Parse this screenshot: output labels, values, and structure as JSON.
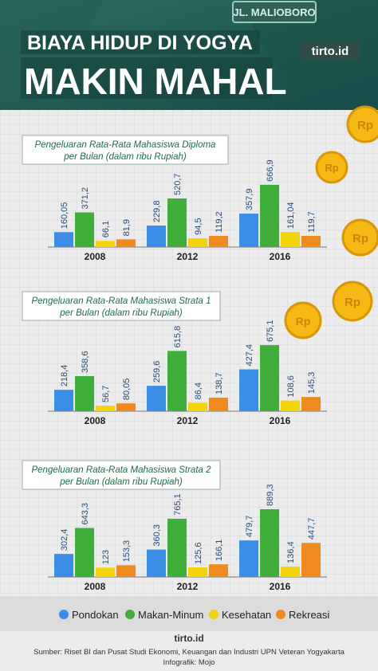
{
  "header": {
    "title_line1": "BIAYA HIDUP DI YOGYA",
    "title_line2": "MAKIN MAHAL",
    "sign_text": "JL. MALIOBORO",
    "brand_badge": "tirto.id"
  },
  "legend": {
    "items": [
      {
        "label": "Pondokan",
        "color": "#3a8ee6"
      },
      {
        "label": "Makan-Minum",
        "color": "#3fae3a"
      },
      {
        "label": "Kesehatan",
        "color": "#f2d40c"
      },
      {
        "label": "Rekreasi",
        "color": "#ef8a1e"
      }
    ]
  },
  "footer": {
    "brand": "tirto.id",
    "source_line1": "Sumber: Riset BI dan Pusat Studi Ekonomi, Keuangan dan Industri UPN Veteran Yogyakarta",
    "source_line2": "Infografik: Mojo"
  },
  "decor": {
    "coin_label": "Rp"
  },
  "colors": {
    "bg": "#ececec",
    "header_teal": "#1f5d57",
    "series": [
      "#3a8ee6",
      "#3fae3a",
      "#f2d40c",
      "#ef8a1e"
    ],
    "title_text": "#1e6d47",
    "coin": "#f5b814"
  },
  "chart_data": [
    {
      "type": "bar",
      "title": "Pengeluaran Rata-Rata Mahasiswa Diploma per Bulan (dalam  ribu Rupiah)",
      "title_lines": [
        "Pengeluaran Rata-Rata Mahasiswa Diploma",
        "per Bulan (dalam  ribu Rupiah)"
      ],
      "categories": [
        "2008",
        "2012",
        "2016"
      ],
      "series": [
        {
          "name": "Pondokan",
          "values": [
            160.05,
            229.8,
            357.9
          ],
          "labels": [
            "160,05",
            "229,8",
            "357,9"
          ]
        },
        {
          "name": "Makan-Minum",
          "values": [
            371.2,
            520.7,
            666.9
          ],
          "labels": [
            "371,2",
            "520,7",
            "666,9"
          ]
        },
        {
          "name": "Kesehatan",
          "values": [
            66.1,
            94.5,
            161.04
          ],
          "labels": [
            "66,1",
            "94,5",
            "161,04"
          ]
        },
        {
          "name": "Rekreasi",
          "values": [
            81.9,
            119.2,
            119.7
          ],
          "labels": [
            "81,9",
            "119,2",
            "119,7"
          ]
        }
      ],
      "ylim": [
        0,
        700
      ]
    },
    {
      "type": "bar",
      "title": "Pengeluaran Rata-Rata Mahasiswa Strata 1 per Bulan (dalam  ribu Rupiah)",
      "title_lines": [
        "Pengeluaran Rata-Rata Mahasiswa Strata 1",
        "per Bulan (dalam  ribu Rupiah)"
      ],
      "categories": [
        "2008",
        "2012",
        "2016"
      ],
      "series": [
        {
          "name": "Pondokan",
          "values": [
            218.4,
            259.6,
            427.4
          ],
          "labels": [
            "218,4",
            "259,6",
            "427,4"
          ]
        },
        {
          "name": "Makan-Minum",
          "values": [
            358.6,
            615.8,
            675.1
          ],
          "labels": [
            "358,6",
            "615,8",
            "675,1"
          ]
        },
        {
          "name": "Kesehatan",
          "values": [
            56.7,
            86.4,
            108.6
          ],
          "labels": [
            "56,7",
            "86,4",
            "108,6"
          ]
        },
        {
          "name": "Rekreasi",
          "values": [
            80.05,
            138.7,
            145.3
          ],
          "labels": [
            "80,05",
            "138,7",
            "145,3"
          ]
        }
      ],
      "ylim": [
        0,
        700
      ]
    },
    {
      "type": "bar",
      "title": "Pengeluaran Rata-Rata Mahasiswa Strata 2 per Bulan (dalam  ribu Rupiah)",
      "title_lines": [
        "Pengeluaran Rata-Rata Mahasiswa Strata 2",
        "per Bulan (dalam  ribu Rupiah)"
      ],
      "categories": [
        "2008",
        "2012",
        "2016"
      ],
      "series": [
        {
          "name": "Pondokan",
          "values": [
            302.4,
            360.3,
            479.7
          ],
          "labels": [
            "302,4",
            "360,3",
            "479,7"
          ]
        },
        {
          "name": "Makan-Minum",
          "values": [
            643.3,
            765.1,
            889.3
          ],
          "labels": [
            "643,3",
            "765,1",
            "889,3"
          ]
        },
        {
          "name": "Kesehatan",
          "values": [
            123,
            125.6,
            136.4
          ],
          "labels": [
            "123",
            "125,6",
            "136,4"
          ]
        },
        {
          "name": "Rekreasi",
          "values": [
            153.3,
            166.1,
            447.7
          ],
          "labels": [
            "153,3",
            "166,1",
            "447,7"
          ]
        }
      ],
      "ylim": [
        0,
        900
      ]
    }
  ]
}
